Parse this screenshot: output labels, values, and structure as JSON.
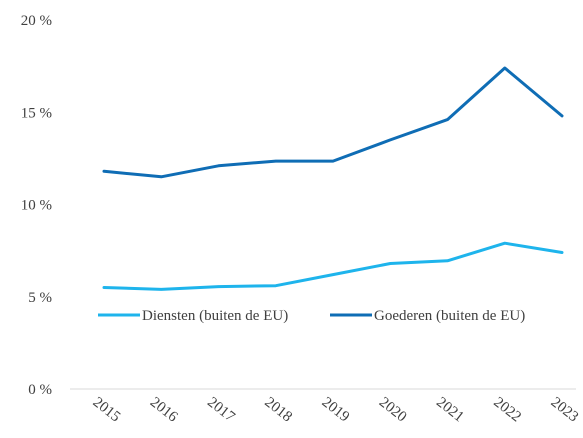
{
  "chart_data": {
    "type": "line",
    "categories": [
      "2015",
      "2016",
      "2017",
      "2018",
      "2019",
      "2020",
      "2021",
      "2022",
      "2023"
    ],
    "y_ticks": [
      0,
      5,
      10,
      15,
      20
    ],
    "y_tick_labels": [
      "0 %",
      "5 %",
      "10 %",
      "15 %",
      "20 %"
    ],
    "ylim": [
      0,
      20
    ],
    "grid": false,
    "legend_position": "inside-center",
    "series": [
      {
        "name": "Diensten (buiten de EU)",
        "color": "#1eb4ec",
        "values": [
          5.5,
          5.4,
          5.55,
          5.6,
          6.2,
          6.8,
          6.95,
          7.9,
          7.4
        ]
      },
      {
        "name": "Goederen (buiten de EU)",
        "color": "#0f6db5",
        "values": [
          11.8,
          11.5,
          12.1,
          12.35,
          12.35,
          13.5,
          14.6,
          17.4,
          14.8
        ]
      }
    ]
  }
}
